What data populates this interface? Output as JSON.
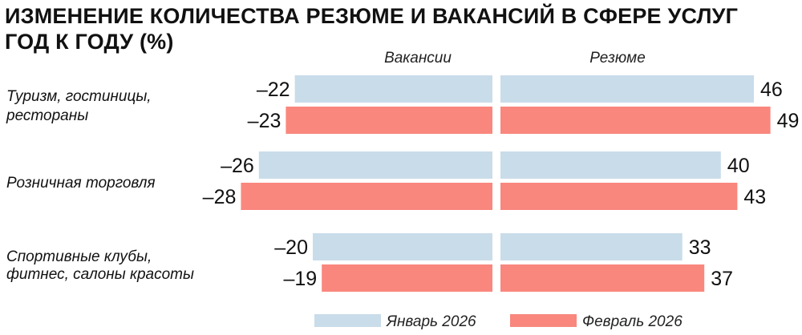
{
  "chart_data": {
    "type": "bar",
    "orientation": "horizontal-diverging",
    "title": [
      "ИЗМЕНЕНИЕ КОЛИЧЕСТВА РЕЗЮМЕ И ВАКАНСИЙ В СФЕРЕ УСЛУГ",
      "ГОД К ГОДУ (%)"
    ],
    "panels": [
      "Вакансии",
      "Резюме"
    ],
    "categories": [
      [
        "Туризм, гостиницы,",
        "рестораны"
      ],
      [
        "Розничная торговля"
      ],
      [
        "Спортивные клубы,",
        "фитнес, салоны красоты"
      ]
    ],
    "series": [
      {
        "name": "Январь 2026",
        "color": "#c9dcea",
        "vacancies": [
          -22,
          -26,
          -20
        ],
        "resumes": [
          46,
          40,
          33
        ],
        "vacancies_labels": [
          "–22",
          "–26",
          "–20"
        ],
        "resumes_labels": [
          "46",
          "40",
          "33"
        ]
      },
      {
        "name": "Февраль 2026",
        "color": "#f9877e",
        "vacancies": [
          -23,
          -28,
          -19
        ],
        "resumes": [
          49,
          43,
          37
        ],
        "vacancies_labels": [
          "–23",
          "–28",
          "–19"
        ],
        "resumes_labels": [
          "49",
          "43",
          "37"
        ]
      }
    ],
    "legend_position": "bottom"
  }
}
